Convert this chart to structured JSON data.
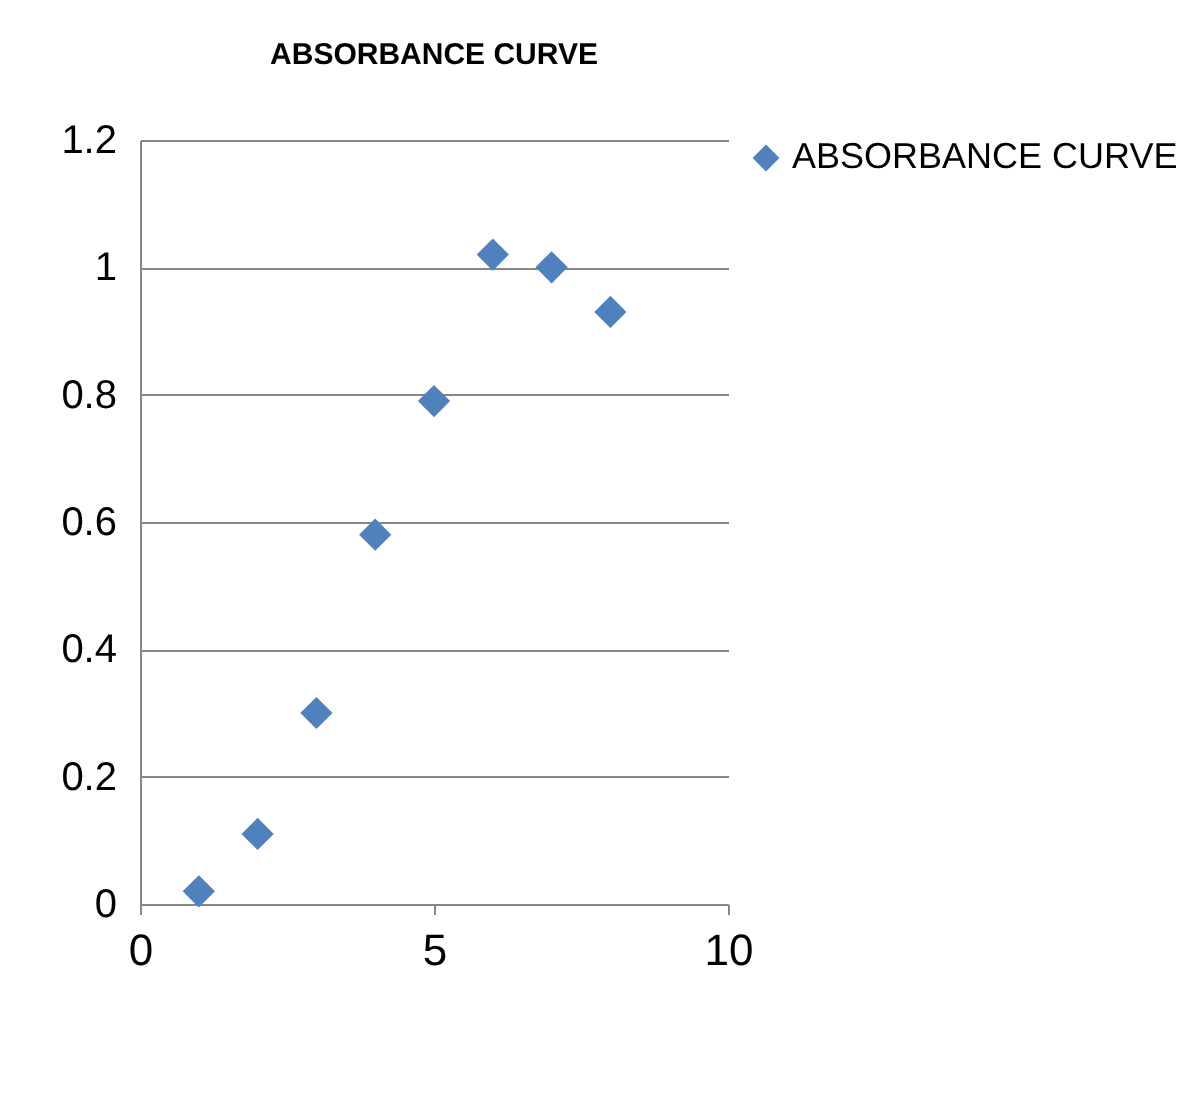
{
  "chart_data": {
    "type": "scatter",
    "title": "ABSORBANCE CURVE",
    "x": [
      1,
      2,
      3,
      4,
      5,
      6,
      7,
      8
    ],
    "series": [
      {
        "name": "ABSORBANCE CURVE",
        "color": "#4f81bd",
        "values": [
          0.02,
          0.11,
          0.3,
          0.58,
          0.79,
          1.02,
          1.0,
          0.93
        ]
      }
    ],
    "xlim": [
      0,
      10
    ],
    "xticks": [
      0,
      5,
      10
    ],
    "ylim": [
      0,
      1.2
    ],
    "yticks": [
      0,
      0.2,
      0.4,
      0.6,
      0.8,
      1,
      1.2
    ],
    "grid": "y",
    "legend": "right",
    "marker": "diamond"
  }
}
